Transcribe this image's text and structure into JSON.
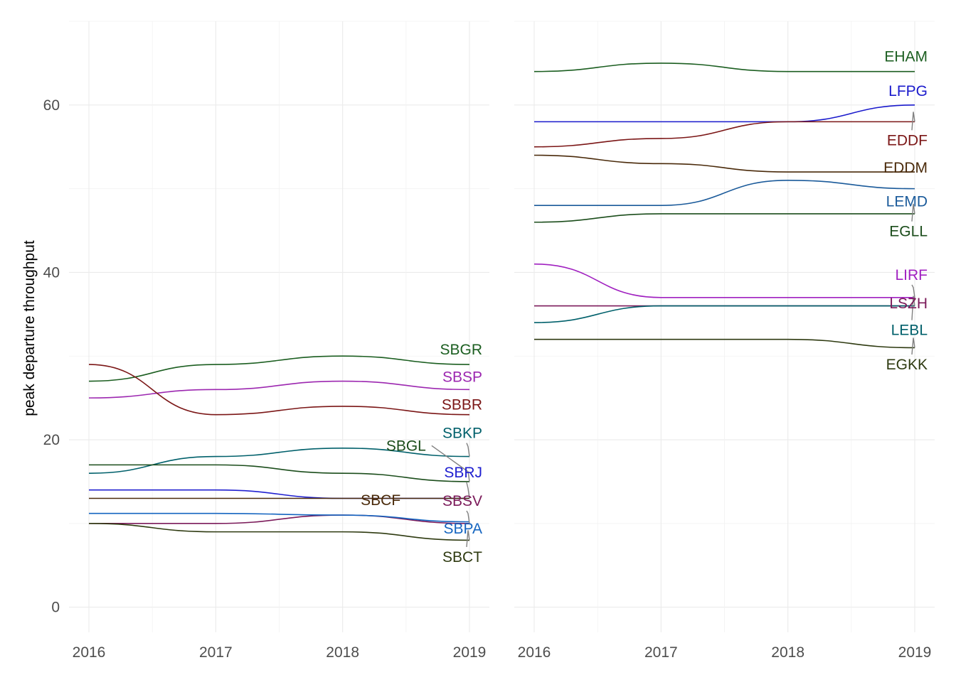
{
  "chart_data": {
    "type": "line",
    "ylabel": "peak departure throughput",
    "xlabel": "",
    "ylim": [
      -3,
      70
    ],
    "y_ticks": [
      0,
      20,
      40,
      60
    ],
    "y_tick_labels": [
      "0",
      "20",
      "40",
      "60"
    ],
    "grid": true,
    "legend": "none (direct labels at line ends)",
    "panels": [
      {
        "x": [
          "2016",
          "2017",
          "2018",
          "2019"
        ],
        "x_tick_labels": [
          "2016",
          "2017",
          "2018",
          "2019"
        ],
        "series": [
          {
            "name": "SBGR",
            "color": "#1b5e20",
            "values": [
              27,
              29,
              30,
              29
            ],
            "label_value": 30.8
          },
          {
            "name": "SBSP",
            "color": "#9c27b0",
            "values": [
              25,
              26,
              27,
              26
            ],
            "label_value": 27.5
          },
          {
            "name": "SBBR",
            "color": "#7b1616",
            "values": [
              29,
              23,
              24,
              23
            ],
            "label_value": 24.2
          },
          {
            "name": "SBKP",
            "color": "#00606b",
            "values": [
              16,
              18,
              19,
              18
            ],
            "label_value": 20.8
          },
          {
            "name": "SBGL",
            "color": "#1b4d1b",
            "values": [
              17,
              17,
              16,
              15
            ],
            "label_value": 19.3,
            "label_x": 2018.5
          },
          {
            "name": "SBRJ",
            "color": "#2020d0",
            "values": [
              14,
              14,
              13,
              13
            ],
            "label_value": 16.1
          },
          {
            "name": "SBCF",
            "color": "#4a2a0a",
            "values": [
              13,
              13,
              13,
              13
            ],
            "label_value": 12.8,
            "label_x": 2018.3
          },
          {
            "name": "SBSV",
            "color": "#7b1a5a",
            "values": [
              10,
              10,
              11,
              10
            ],
            "label_value": 12.7
          },
          {
            "name": "SBPA",
            "color": "#1565c0",
            "values": [
              11.2,
              11.2,
              11,
              10.2
            ],
            "label_value": 9.4
          },
          {
            "name": "SBCT",
            "color": "#2e3a10",
            "values": [
              10,
              9,
              9,
              8
            ],
            "label_value": 6.0
          }
        ]
      },
      {
        "x": [
          "2016",
          "2017",
          "2018",
          "2019"
        ],
        "x_tick_labels": [
          "2016",
          "2017",
          "2018",
          "2019"
        ],
        "series": [
          {
            "name": "EHAM",
            "color": "#1b5e20",
            "values": [
              64,
              65,
              64,
              64
            ],
            "label_value": 65.8
          },
          {
            "name": "LFPG",
            "color": "#1a1acc",
            "values": [
              58,
              58,
              58,
              60
            ],
            "label_value": 61.7
          },
          {
            "name": "EDDF",
            "color": "#7b1616",
            "values": [
              55,
              56,
              58,
              58
            ],
            "label_value": 55.8
          },
          {
            "name": "EDDM",
            "color": "#4a2a0a",
            "values": [
              54,
              53,
              52,
              52
            ],
            "label_value": 52.5
          },
          {
            "name": "LEMD",
            "color": "#1a5a9a",
            "values": [
              48,
              48,
              51,
              50
            ],
            "label_value": 48.5
          },
          {
            "name": "EGLL",
            "color": "#1b4d1b",
            "values": [
              46,
              47,
              47,
              47
            ],
            "label_value": 44.9
          },
          {
            "name": "LIRF",
            "color": "#a020c0",
            "values": [
              41,
              37,
              37,
              37
            ],
            "label_value": 39.7
          },
          {
            "name": "LSZH",
            "color": "#7b1a5a",
            "values": [
              36,
              36,
              36,
              36
            ],
            "label_value": 36.3
          },
          {
            "name": "LEBL",
            "color": "#00606b",
            "values": [
              34,
              36,
              36,
              36
            ],
            "label_value": 33.1
          },
          {
            "name": "EGKK",
            "color": "#2e3a10",
            "values": [
              32,
              32,
              32,
              31
            ],
            "label_value": 29.0
          }
        ]
      }
    ]
  }
}
